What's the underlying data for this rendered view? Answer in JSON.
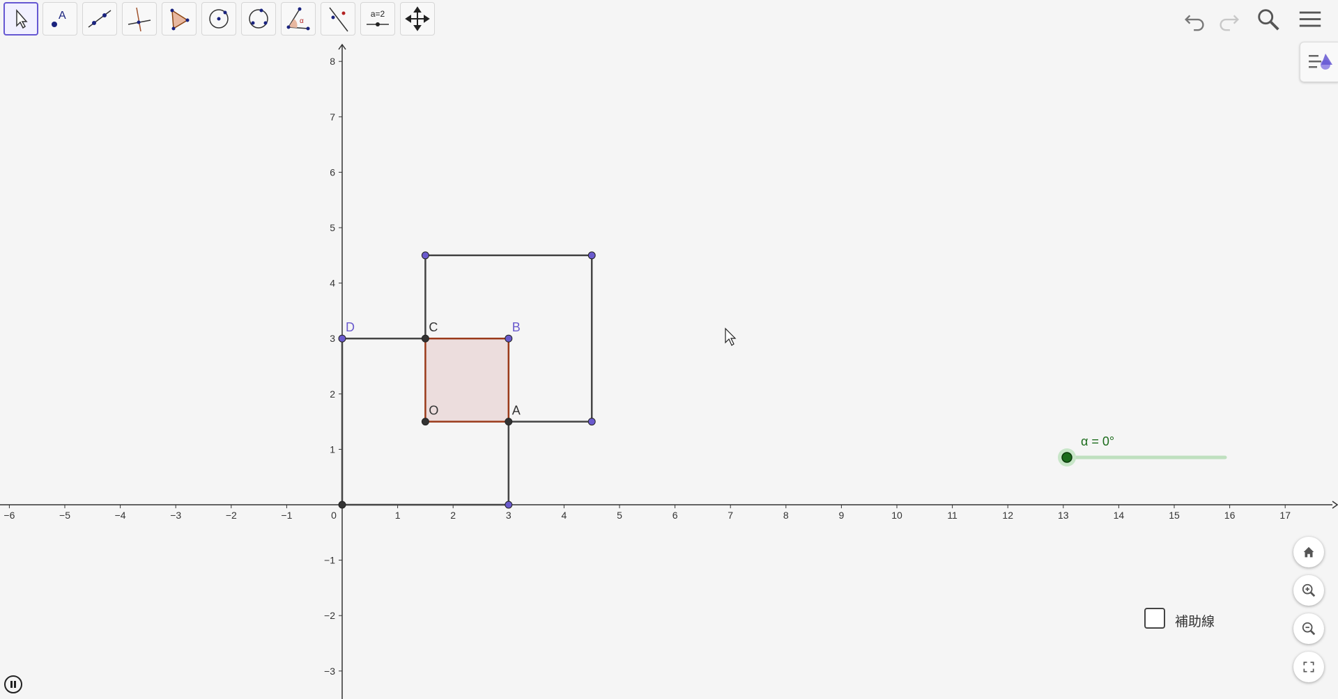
{
  "toolbar": {
    "tools": [
      {
        "name": "Move",
        "icon": "move-arrow-icon",
        "active": true
      },
      {
        "name": "Point",
        "icon": "point-icon",
        "active": false
      },
      {
        "name": "Line",
        "icon": "line-icon",
        "active": false
      },
      {
        "name": "Perpendicular Line",
        "icon": "perpendicular-line-icon",
        "active": false
      },
      {
        "name": "Polygon",
        "icon": "polygon-icon",
        "active": false
      },
      {
        "name": "Circle with Center through Point",
        "icon": "circle-center-icon",
        "active": false
      },
      {
        "name": "Circle through 3 Points",
        "icon": "circle-three-points-icon",
        "active": false
      },
      {
        "name": "Angle",
        "icon": "angle-icon",
        "active": false
      },
      {
        "name": "Reflect about Line",
        "icon": "reflect-line-icon",
        "active": false
      },
      {
        "name": "Slider",
        "icon": "slider-icon",
        "label": "a=2",
        "active": false
      },
      {
        "name": "Move Graphics View",
        "icon": "move-graphics-icon",
        "active": false
      }
    ],
    "right_icons": [
      "undo-icon",
      "redo-icon",
      "search-icon",
      "menu-icon"
    ]
  },
  "graphics": {
    "x_axis_ticks": [
      "−6",
      "−5",
      "−4",
      "−3",
      "−2",
      "−1",
      "0",
      "1",
      "2",
      "3",
      "4",
      "5",
      "6",
      "7",
      "8",
      "9",
      "10",
      "11",
      "12",
      "13",
      "14",
      "15",
      "16",
      "17"
    ],
    "y_axis_ticks": [
      "−3",
      "−2",
      "−1",
      "1",
      "2",
      "3",
      "4",
      "5",
      "6",
      "7",
      "8"
    ],
    "points": [
      {
        "label": "D",
        "x": 0,
        "y": 3,
        "color": "#6a5acd",
        "show_label": true
      },
      {
        "label": "C",
        "x": 1.5,
        "y": 3,
        "color": "#333333",
        "show_label": true
      },
      {
        "label": "B",
        "x": 3,
        "y": 3,
        "color": "#6a5acd",
        "show_label": true
      },
      {
        "label": "O",
        "x": 1.5,
        "y": 1.5,
        "color": "#333333",
        "show_label": true
      },
      {
        "label": "A",
        "x": 3,
        "y": 1.5,
        "color": "#333333",
        "show_label": true
      },
      {
        "label": "",
        "x": 0,
        "y": 0,
        "color": "#333333",
        "show_label": false
      },
      {
        "label": "",
        "x": 3,
        "y": 0,
        "color": "#6a5acd",
        "show_label": false
      },
      {
        "label": "",
        "x": 1.5,
        "y": 4.5,
        "color": "#6a5acd",
        "show_label": false
      },
      {
        "label": "",
        "x": 4.5,
        "y": 4.5,
        "color": "#6a5acd",
        "show_label": false
      },
      {
        "label": "",
        "x": 4.5,
        "y": 1.5,
        "color": "#6a5acd",
        "show_label": false
      }
    ],
    "squares": [
      {
        "name": "inner-square",
        "corners": [
          [
            1.5,
            1.5
          ],
          [
            3,
            1.5
          ],
          [
            3,
            3
          ],
          [
            1.5,
            3
          ]
        ],
        "fill": "#ead8d8",
        "stroke": "#9a3a1a"
      },
      {
        "name": "lower-left-square",
        "corners": [
          [
            0,
            0
          ],
          [
            3,
            0
          ],
          [
            3,
            1.5
          ]
        ],
        "stroke": "#444444",
        "note_open": true
      },
      {
        "name": "upper-right-square",
        "corners": [
          [
            1.5,
            3
          ],
          [
            1.5,
            4.5
          ],
          [
            4.5,
            4.5
          ],
          [
            4.5,
            1.5
          ],
          [
            3,
            1.5
          ]
        ],
        "stroke": "#444444"
      }
    ]
  },
  "slider": {
    "label": "α = 0°",
    "value": 0
  },
  "checkbox": {
    "label": "補助線",
    "checked": false
  },
  "colors": {
    "accent": "#6557d2",
    "point_blue": "#6a5acd",
    "slider_green": "#1b6b1b",
    "square_fill": "#ead8d8"
  }
}
